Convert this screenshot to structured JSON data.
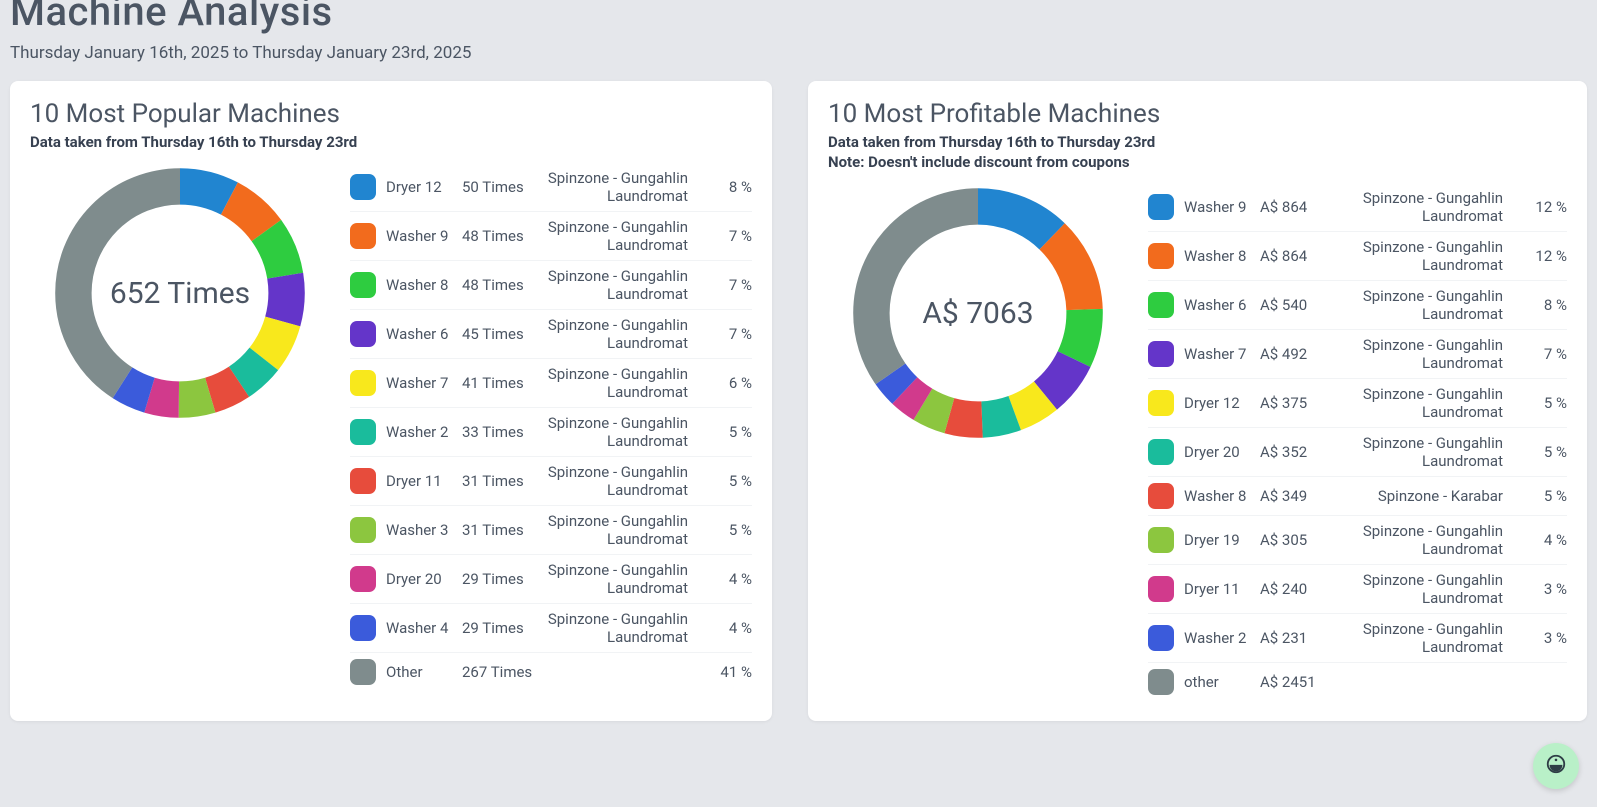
{
  "header": {
    "title": "Machine Analysis",
    "subtitle": "Thursday January 16th, 2025 to Thursday January 23rd, 2025"
  },
  "palette": {
    "background": "#e5e7eb",
    "card": "#ffffff",
    "text": "#4b5563",
    "text_strong": "#374151",
    "row_divider": "#f1f3f5"
  },
  "donut_style": {
    "outer_radius": 48,
    "stroke_width": 14,
    "center_fontsize": 30
  },
  "popular": {
    "title": "10 Most Popular Machines",
    "subtitle": "Data taken from Thursday 16th to Thursday 23rd",
    "center_label": "652 Times",
    "total": 652,
    "rows": [
      {
        "name": "Dryer 12",
        "value_label": "50 Times",
        "value": 50,
        "location": "Spinzone - Gungahlin Laundromat",
        "pct": "8 %",
        "color": "#2185d0"
      },
      {
        "name": "Washer 9",
        "value_label": "48 Times",
        "value": 48,
        "location": "Spinzone - Gungahlin Laundromat",
        "pct": "7 %",
        "color": "#f26b1d"
      },
      {
        "name": "Washer 8",
        "value_label": "48 Times",
        "value": 48,
        "location": "Spinzone - Gungahlin Laundromat",
        "pct": "7 %",
        "color": "#2ecc40"
      },
      {
        "name": "Washer 6",
        "value_label": "45 Times",
        "value": 45,
        "location": "Spinzone - Gungahlin Laundromat",
        "pct": "7 %",
        "color": "#6435c9"
      },
      {
        "name": "Washer 7",
        "value_label": "41 Times",
        "value": 41,
        "location": "Spinzone - Gungahlin Laundromat",
        "pct": "6 %",
        "color": "#f8e81c"
      },
      {
        "name": "Washer 2",
        "value_label": "33 Times",
        "value": 33,
        "location": "Spinzone - Gungahlin Laundromat",
        "pct": "5 %",
        "color": "#1abc9c"
      },
      {
        "name": "Dryer 11",
        "value_label": "31 Times",
        "value": 31,
        "location": "Spinzone - Gungahlin Laundromat",
        "pct": "5 %",
        "color": "#e74c3c"
      },
      {
        "name": "Washer 3",
        "value_label": "31 Times",
        "value": 31,
        "location": "Spinzone - Gungahlin Laundromat",
        "pct": "5 %",
        "color": "#8cc63f"
      },
      {
        "name": "Dryer 20",
        "value_label": "29 Times",
        "value": 29,
        "location": "Spinzone - Gungahlin Laundromat",
        "pct": "4 %",
        "color": "#d13a8c"
      },
      {
        "name": "Washer 4",
        "value_label": "29 Times",
        "value": 29,
        "location": "Spinzone - Gungahlin Laundromat",
        "pct": "4 %",
        "color": "#3b5bdb"
      },
      {
        "name": "Other",
        "value_label": "267 Times",
        "value": 267,
        "location": "",
        "pct": "41 %",
        "color": "#7f8c8d"
      }
    ]
  },
  "profitable": {
    "title": "10 Most Profitable Machines",
    "subtitle": "Data taken from Thursday 16th to Thursday 23rd",
    "note": "Note: Doesn't include discount from coupons",
    "center_label": "A$ 7063",
    "total": 7063,
    "rows": [
      {
        "name": "Washer 9",
        "value_label": "A$ 864",
        "value": 864,
        "location": "Spinzone - Gungahlin Laundromat",
        "pct": "12 %",
        "color": "#2185d0"
      },
      {
        "name": "Washer 8",
        "value_label": "A$ 864",
        "value": 864,
        "location": "Spinzone - Gungahlin Laundromat",
        "pct": "12 %",
        "color": "#f26b1d"
      },
      {
        "name": "Washer 6",
        "value_label": "A$ 540",
        "value": 540,
        "location": "Spinzone - Gungahlin Laundromat",
        "pct": "8 %",
        "color": "#2ecc40"
      },
      {
        "name": "Washer 7",
        "value_label": "A$ 492",
        "value": 492,
        "location": "Spinzone - Gungahlin Laundromat",
        "pct": "7 %",
        "color": "#6435c9"
      },
      {
        "name": "Dryer 12",
        "value_label": "A$ 375",
        "value": 375,
        "location": "Spinzone - Gungahlin Laundromat",
        "pct": "5 %",
        "color": "#f8e81c"
      },
      {
        "name": "Dryer 20",
        "value_label": "A$ 352",
        "value": 352,
        "location": "Spinzone - Gungahlin Laundromat",
        "pct": "5 %",
        "color": "#1abc9c"
      },
      {
        "name": "Washer 8",
        "value_label": "A$ 349",
        "value": 349,
        "location": "Spinzone - Karabar",
        "pct": "5 %",
        "color": "#e74c3c"
      },
      {
        "name": "Dryer 19",
        "value_label": "A$ 305",
        "value": 305,
        "location": "Spinzone - Gungahlin Laundromat",
        "pct": "4 %",
        "color": "#8cc63f"
      },
      {
        "name": "Dryer 11",
        "value_label": "A$ 240",
        "value": 240,
        "location": "Spinzone - Gungahlin Laundromat",
        "pct": "3 %",
        "color": "#d13a8c"
      },
      {
        "name": "Washer 2",
        "value_label": "A$ 231",
        "value": 231,
        "location": "Spinzone - Gungahlin Laundromat",
        "pct": "3 %",
        "color": "#3b5bdb"
      },
      {
        "name": "other",
        "value_label": "A$ 2451",
        "value": 2451,
        "location": "",
        "pct": "",
        "color": "#7f8c8d"
      }
    ]
  },
  "fab": {
    "color": "#b9f0c8",
    "icon_color": "#2f3e46"
  }
}
